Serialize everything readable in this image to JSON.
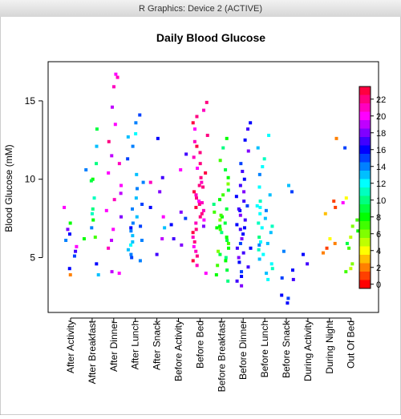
{
  "window_title": "R Graphics: Device 2 (ACTIVE)",
  "chart_data": {
    "type": "strip",
    "title": "Daily Blood Glucose",
    "y_label": "Blood Glucose (mM)",
    "ylim": [
      1.5,
      17.5
    ],
    "yticks": [
      5,
      10,
      15
    ],
    "categories": [
      "After Activity",
      "After Breakfast",
      "After Dinner",
      "After Lunch",
      "After Snack",
      "Before Activity",
      "Before Bed",
      "Before Breakfast",
      "Before Dinner",
      "Before Lunch",
      "Before Snack",
      "During Activity",
      "During Night",
      "Out Of Bed"
    ],
    "groups": [
      {
        "values": [
          8.2,
          7.2,
          6.8,
          6.5,
          6.1,
          5.7,
          5.4,
          5.1,
          4.3,
          3.9
        ],
        "hours": [
          20,
          8,
          18,
          16,
          14,
          20,
          17,
          15,
          16,
          2
        ]
      },
      {
        "values": [
          13.2,
          12.1,
          11.0,
          10.6,
          10.0,
          9.9,
          8.8,
          8.1,
          7.8,
          7.4,
          6.9,
          6.3,
          6.2,
          4.6,
          3.9
        ],
        "hours": [
          9,
          13,
          10,
          14,
          8,
          9,
          11,
          10,
          11,
          8,
          14,
          7,
          8,
          16,
          13
        ]
      },
      {
        "values": [
          16.7,
          16.5,
          15.9,
          14.6,
          13.5,
          12.4,
          11.5,
          11.0,
          10.4,
          9.6,
          9.1,
          8.7,
          8.0,
          7.6,
          6.8,
          6.1,
          5.6,
          4.1,
          4.0
        ],
        "hours": [
          20,
          21,
          21,
          19,
          20,
          22,
          19,
          21,
          20,
          20,
          19,
          21,
          20,
          18,
          20,
          19,
          21,
          19,
          20
        ]
      },
      {
        "values": [
          14.1,
          13.6,
          12.7,
          12.1,
          11.3,
          10.3,
          9.8,
          9.4,
          8.8,
          8.4,
          8.1,
          7.6,
          7.2,
          7.0,
          6.9,
          6.7,
          6.4,
          6.1,
          5.8,
          5.5,
          5.2,
          5.0,
          4.8,
          12.9,
          6.0
        ],
        "hours": [
          15,
          14,
          13,
          14,
          15,
          13,
          14,
          14,
          13,
          15,
          14,
          13,
          14,
          15,
          16,
          14,
          13,
          14,
          12,
          13,
          14,
          15,
          14,
          12,
          13
        ]
      },
      {
        "values": [
          12.6,
          10.1,
          9.8,
          9.2,
          8.2,
          7.6,
          6.9,
          6.2,
          5.2
        ],
        "hours": [
          16,
          17,
          21,
          18,
          16,
          20,
          13,
          19,
          17
        ]
      },
      {
        "values": [
          11.6,
          10.6,
          7.9,
          7.5,
          7.1,
          6.2,
          5.8
        ],
        "hours": [
          17,
          20,
          18,
          15,
          16,
          17,
          18
        ]
      },
      {
        "values": [
          14.9,
          14.4,
          14.0,
          13.6,
          13.2,
          12.8,
          12.4,
          12.1,
          11.7,
          11.4,
          11.0,
          10.7,
          10.4,
          10.1,
          9.8,
          9.5,
          9.2,
          9.0,
          8.8,
          8.6,
          8.4,
          8.2,
          8.0,
          7.8,
          7.6,
          7.4,
          7.2,
          7.0,
          6.8,
          6.6,
          6.3,
          6.0,
          5.7,
          5.4,
          5.1,
          4.8,
          4.5,
          4.0,
          9.6,
          8.5
        ],
        "hours": [
          22,
          21,
          22,
          23,
          20,
          22,
          21,
          23,
          22,
          21,
          22,
          20,
          23,
          22,
          21,
          22,
          23,
          21,
          22,
          20,
          22,
          23,
          21,
          22,
          22,
          20,
          21,
          18,
          22,
          23,
          21,
          22,
          20,
          21,
          22,
          23,
          21,
          20,
          22,
          21
        ]
      },
      {
        "values": [
          12.6,
          12.0,
          11.2,
          10.6,
          10.1,
          9.7,
          9.3,
          9.0,
          8.7,
          8.4,
          8.1,
          7.9,
          7.6,
          7.4,
          7.2,
          7.0,
          6.8,
          6.6,
          6.3,
          6.1,
          5.9,
          5.6,
          5.4,
          5.2,
          5.0,
          4.8,
          4.5,
          4.2,
          3.9,
          3.5,
          7.7,
          6.9
        ],
        "hours": [
          8,
          10,
          7,
          9,
          8,
          6,
          9,
          7,
          8,
          10,
          9,
          7,
          8,
          6,
          9,
          8,
          7,
          10,
          8,
          9,
          7,
          8,
          6,
          9,
          10,
          8,
          7,
          9,
          8,
          10,
          7,
          8
        ]
      },
      {
        "values": [
          13.6,
          13.2,
          12.5,
          11.8,
          11.0,
          10.5,
          10.0,
          9.6,
          9.2,
          8.9,
          8.6,
          8.3,
          8.0,
          7.7,
          7.4,
          7.1,
          6.8,
          6.5,
          6.2,
          5.9,
          5.6,
          5.6,
          5.3,
          5.0,
          4.7,
          4.4,
          4.1,
          3.8,
          3.5,
          3.2,
          6.9,
          8.1
        ],
        "hours": [
          16,
          17,
          16,
          18,
          15,
          17,
          16,
          17,
          18,
          16,
          17,
          15,
          16,
          18,
          17,
          16,
          17,
          16,
          18,
          15,
          17,
          16,
          17,
          18,
          16,
          17,
          15,
          16,
          17,
          18,
          16,
          17
        ]
      },
      {
        "values": [
          12.8,
          12.0,
          11.3,
          10.8,
          10.3,
          9.5,
          9.0,
          8.6,
          8.3,
          8.0,
          7.8,
          7.5,
          7.2,
          6.9,
          6.6,
          6.3,
          6.0,
          5.8,
          5.5,
          5.2,
          4.9,
          4.6,
          4.3,
          4.0,
          3.6,
          8.2,
          7.0,
          5.9
        ],
        "hours": [
          12,
          13,
          11,
          12,
          14,
          12,
          13,
          11,
          12,
          14,
          12,
          13,
          11,
          12,
          13,
          10,
          12,
          14,
          11,
          12,
          13,
          12,
          11,
          13,
          12,
          12,
          11,
          13
        ]
      },
      {
        "values": [
          9.6,
          9.2,
          5.4,
          4.2,
          3.7,
          3.6,
          2.6,
          2.4,
          2.1
        ],
        "hours": [
          13,
          15,
          14,
          16,
          15,
          17,
          16,
          15,
          16
        ]
      },
      {
        "values": [
          5.2,
          4.6
        ],
        "hours": [
          16,
          17
        ]
      },
      {
        "values": [
          12.6,
          8.6,
          8.2,
          7.8,
          6.2,
          5.9,
          5.6,
          5.3
        ],
        "hours": [
          2,
          1,
          1,
          3,
          4,
          2,
          1,
          2
        ]
      },
      {
        "values": [
          12.0,
          8.8,
          8.5,
          7.4,
          7.0,
          6.7,
          6.3,
          5.9,
          5.6,
          4.6,
          4.3,
          4.1
        ],
        "hours": [
          15,
          4,
          20,
          7,
          6,
          8,
          5,
          9,
          7,
          6,
          5,
          7
        ]
      }
    ],
    "colorbar": {
      "colors": [
        "#FF0000",
        "#FF4000",
        "#FF8000",
        "#FFBF00",
        "#FFFF00",
        "#BFFF00",
        "#80FF00",
        "#40FF00",
        "#00FF00",
        "#00FF40",
        "#00FF80",
        "#00FFBF",
        "#00FFFF",
        "#00BFFF",
        "#0080FF",
        "#0040FF",
        "#0000FF",
        "#4000FF",
        "#8000FF",
        "#BF00FF",
        "#FF00FF",
        "#FF00BF",
        "#FF0080",
        "#FF0040"
      ],
      "ticks": [
        0,
        2,
        4,
        6,
        8,
        10,
        12,
        14,
        16,
        18,
        20,
        22
      ]
    }
  }
}
